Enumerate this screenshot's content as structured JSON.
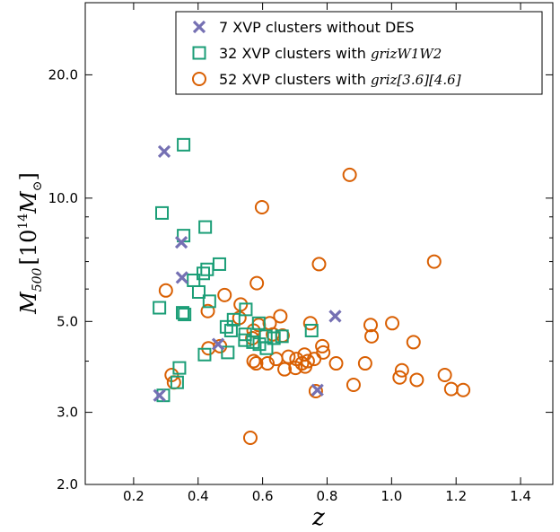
{
  "chart_data": {
    "type": "scatter",
    "title": "",
    "xlabel": "z",
    "ylabel_main": "M",
    "ylabel_sub": "500",
    "ylabel_unit": "[10",
    "ylabel_exp": "14",
    "ylabel_msun": "M",
    "ylabel_sun": "⊙",
    "ylabel_close": "]",
    "xlim": [
      0.05,
      1.5
    ],
    "ylim": [
      2.0,
      30.0
    ],
    "yscale": "log",
    "grid": false,
    "legend_position": "top-right",
    "x_ticks": [
      0.2,
      0.4,
      0.6,
      0.8,
      1.0,
      1.2,
      1.4
    ],
    "x_tick_labels": [
      "0.2",
      "0.4",
      "0.6",
      "0.8",
      "1.0",
      "1.2",
      "1.4"
    ],
    "y_ticks": [
      2.0,
      3.0,
      5.0,
      10.0,
      20.0
    ],
    "y_tick_labels": [
      "2.0",
      "3.0",
      "5.0",
      "10.0",
      "20.0"
    ],
    "series": [
      {
        "name": "7 XVP clusters without DES",
        "label_text": "7 XVP clusters without DES",
        "label_math": "",
        "marker": "x",
        "color": "#7570b3",
        "points": [
          [
            0.295,
            13.0
          ],
          [
            0.348,
            7.8
          ],
          [
            0.35,
            6.4
          ],
          [
            0.28,
            3.3
          ],
          [
            0.825,
            5.15
          ],
          [
            0.77,
            3.4
          ],
          [
            0.462,
            4.4
          ]
        ]
      },
      {
        "name": "32 XVP clusters with grizW1W2",
        "label_text": "32 XVP clusters with ",
        "label_math": "grizW1W2",
        "marker": "square",
        "color": "#1b9e77",
        "points": [
          [
            0.355,
            13.5
          ],
          [
            0.288,
            9.2
          ],
          [
            0.355,
            8.1
          ],
          [
            0.422,
            8.5
          ],
          [
            0.466,
            6.9
          ],
          [
            0.428,
            6.7
          ],
          [
            0.416,
            6.55
          ],
          [
            0.386,
            6.3
          ],
          [
            0.402,
            5.9
          ],
          [
            0.435,
            5.6
          ],
          [
            0.28,
            5.4
          ],
          [
            0.352,
            5.25
          ],
          [
            0.358,
            5.2
          ],
          [
            0.548,
            5.35
          ],
          [
            0.51,
            5.05
          ],
          [
            0.488,
            4.85
          ],
          [
            0.502,
            4.75
          ],
          [
            0.546,
            4.65
          ],
          [
            0.588,
            4.95
          ],
          [
            0.61,
            4.6
          ],
          [
            0.635,
            4.55
          ],
          [
            0.66,
            4.6
          ],
          [
            0.752,
            4.75
          ],
          [
            0.57,
            4.45
          ],
          [
            0.59,
            4.4
          ],
          [
            0.545,
            4.5
          ],
          [
            0.42,
            4.15
          ],
          [
            0.492,
            4.2
          ],
          [
            0.342,
            3.85
          ],
          [
            0.335,
            3.55
          ],
          [
            0.292,
            3.3
          ],
          [
            0.612,
            4.3
          ]
        ]
      },
      {
        "name": "52 XVP clusters with griz[3.6][4.6]",
        "label_text": "52 XVP clusters with ",
        "label_math": "griz[3.6][4.6]",
        "marker": "circle",
        "color": "#d95f02",
        "points": [
          [
            0.87,
            11.4
          ],
          [
            0.598,
            9.5
          ],
          [
            0.775,
            6.9
          ],
          [
            1.132,
            7.0
          ],
          [
            0.582,
            6.2
          ],
          [
            0.3,
            5.95
          ],
          [
            0.482,
            5.8
          ],
          [
            0.532,
            5.5
          ],
          [
            0.43,
            5.3
          ],
          [
            0.655,
            5.15
          ],
          [
            0.528,
            5.1
          ],
          [
            0.588,
            4.9
          ],
          [
            0.622,
            4.95
          ],
          [
            0.748,
            4.95
          ],
          [
            0.572,
            4.75
          ],
          [
            0.935,
            4.9
          ],
          [
            1.002,
            4.95
          ],
          [
            0.632,
            4.65
          ],
          [
            0.662,
            4.62
          ],
          [
            0.568,
            4.55
          ],
          [
            0.938,
            4.6
          ],
          [
            1.068,
            4.45
          ],
          [
            0.468,
            4.35
          ],
          [
            0.432,
            4.3
          ],
          [
            0.785,
            4.35
          ],
          [
            0.788,
            4.2
          ],
          [
            0.68,
            4.1
          ],
          [
            0.73,
            4.15
          ],
          [
            0.76,
            4.05
          ],
          [
            0.642,
            4.05
          ],
          [
            0.615,
            3.95
          ],
          [
            0.572,
            4.0
          ],
          [
            0.58,
            3.95
          ],
          [
            0.705,
            4.05
          ],
          [
            0.722,
            3.95
          ],
          [
            0.828,
            3.95
          ],
          [
            0.918,
            3.95
          ],
          [
            0.74,
            4.0
          ],
          [
            0.668,
            3.82
          ],
          [
            0.702,
            3.85
          ],
          [
            0.732,
            3.88
          ],
          [
            1.032,
            3.8
          ],
          [
            1.025,
            3.65
          ],
          [
            1.078,
            3.6
          ],
          [
            1.165,
            3.7
          ],
          [
            0.882,
            3.5
          ],
          [
            1.185,
            3.42
          ],
          [
            1.222,
            3.4
          ],
          [
            0.765,
            3.38
          ],
          [
            0.318,
            3.7
          ],
          [
            0.325,
            3.55
          ],
          [
            0.562,
            2.6
          ]
        ]
      }
    ]
  }
}
